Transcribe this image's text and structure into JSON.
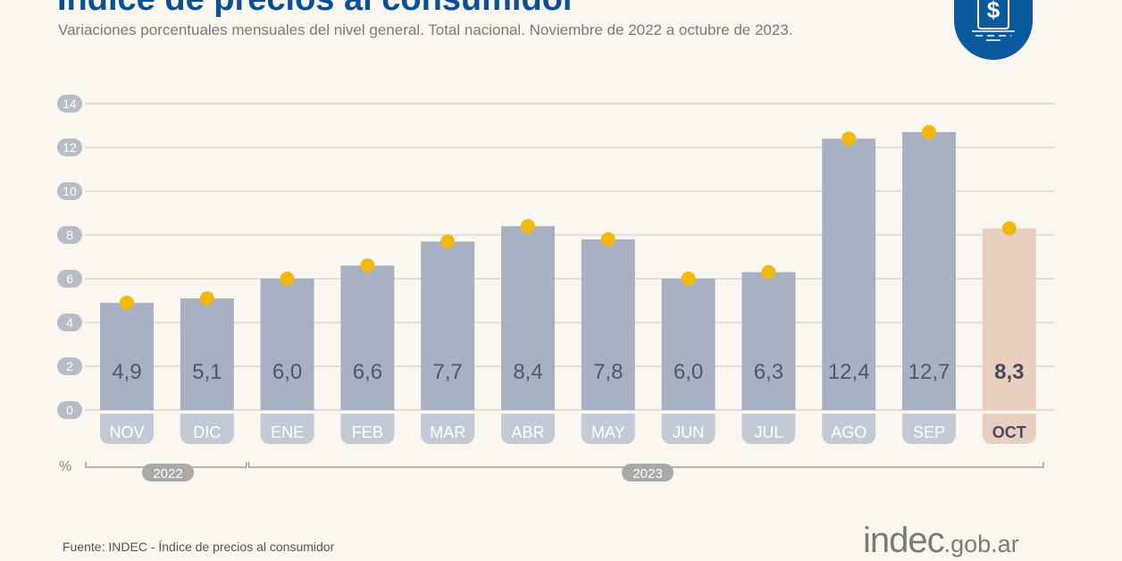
{
  "header": {
    "title": "Índice de precios al consumidor",
    "subtitle": "Variaciones porcentuales mensuales del nivel general. Total nacional. Noviembre de 2022 a octubre de 2023."
  },
  "logo_icon": "dollar-document-icon",
  "footer": {
    "source": "Fuente: INDEC - Índice de precios al consumidor",
    "brand_main": "indec",
    "brand_suffix": ".gob.ar"
  },
  "colors": {
    "bar": "#a7b1c2",
    "bar_highlight": "#e8cfc0",
    "marker": "#f0b90b",
    "title": "#0b4f94"
  },
  "chart_data": {
    "type": "bar",
    "ylabel": "%",
    "ylim": [
      0,
      14
    ],
    "yticks": [
      0,
      2,
      4,
      6,
      8,
      10,
      12,
      14
    ],
    "grid": true,
    "categories": [
      "NOV",
      "DIC",
      "ENE",
      "FEB",
      "MAR",
      "ABR",
      "MAY",
      "JUN",
      "JUL",
      "AGO",
      "SEP",
      "OCT"
    ],
    "values": [
      4.9,
      5.1,
      6.0,
      6.6,
      7.7,
      8.4,
      7.8,
      6.0,
      6.3,
      12.4,
      12.7,
      8.3
    ],
    "value_labels": [
      "4,9",
      "5,1",
      "6,0",
      "6,6",
      "7,7",
      "8,4",
      "7,8",
      "6,0",
      "6,3",
      "12,4",
      "12,7",
      "8,3"
    ],
    "highlight": "OCT",
    "year_groups": [
      {
        "label": "2022",
        "from": "NOV",
        "to": "DIC"
      },
      {
        "label": "2023",
        "from": "ENE",
        "to": "OCT"
      }
    ]
  }
}
